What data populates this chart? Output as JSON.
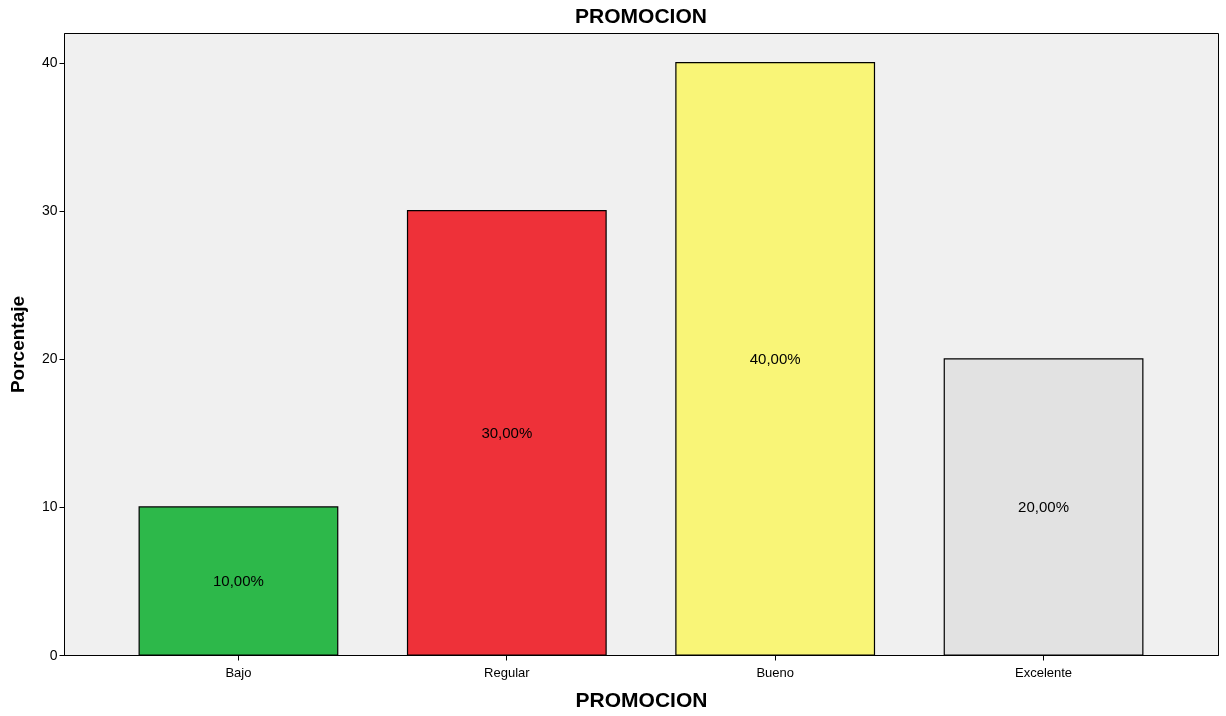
{
  "chart_data": {
    "type": "bar",
    "title": "PROMOCION",
    "xlabel": "PROMOCION",
    "ylabel": "Porcentaje",
    "categories": [
      "Bajo",
      "Regular",
      "Bueno",
      "Excelente"
    ],
    "values": [
      10,
      30,
      40,
      20
    ],
    "colors": [
      "#2db84a",
      "#ee3139",
      "#f9f577",
      "#e2e2e2"
    ],
    "value_labels": [
      "10,00%",
      "30,00%",
      "40,00%",
      "20,00%"
    ],
    "ylim": [
      0,
      42
    ],
    "yticks": [
      0,
      10,
      20,
      30,
      40
    ],
    "grid": false
  }
}
